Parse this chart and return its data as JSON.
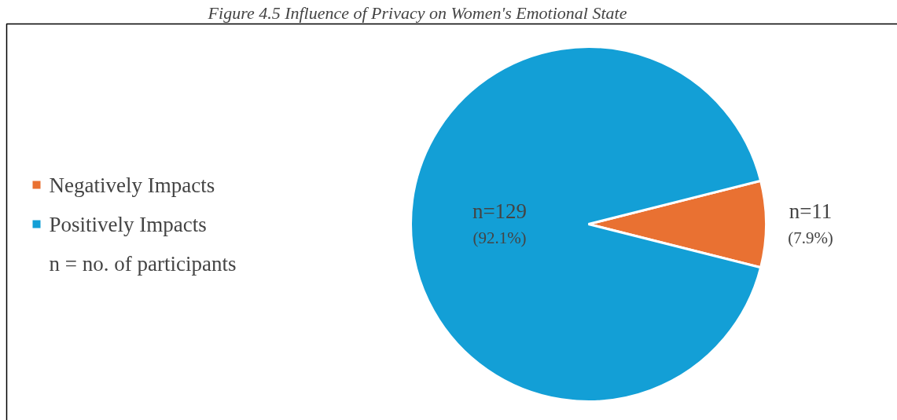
{
  "chart_data": {
    "type": "pie",
    "title": "Figure 4.5 Influence of Privacy on Women's Emotional State",
    "categories": [
      "Negatively Impacts",
      "Positively Impacts"
    ],
    "values": [
      11,
      129
    ],
    "colors": [
      "#e97132",
      "#139fd6"
    ],
    "value_labels": [
      "n=11\n(7.9%)",
      "n=129\n(92.1%)"
    ],
    "legend": "left",
    "annotations": [
      "n = no. of participants"
    ]
  }
}
